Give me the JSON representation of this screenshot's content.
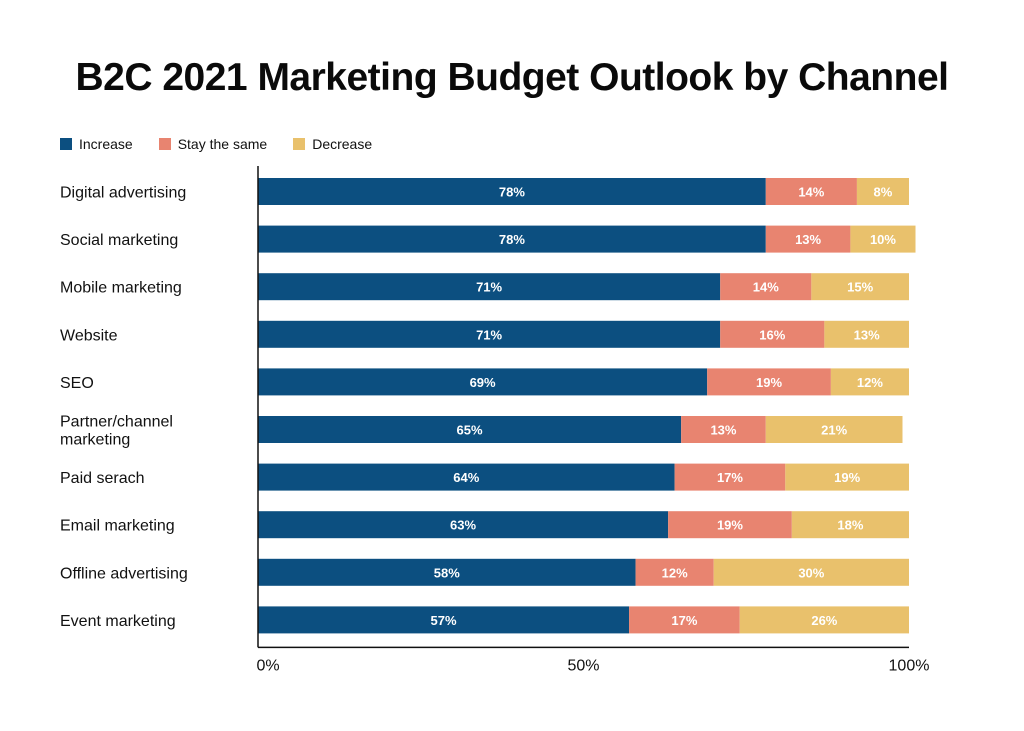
{
  "colors": {
    "increase": "#0c4f80",
    "stay": "#e88470",
    "decrease": "#e9c16c",
    "axis": "#111111"
  },
  "chart_data": {
    "type": "bar",
    "orientation": "horizontal",
    "stacked": true,
    "title": "B2C 2021 Marketing Budget Outlook by Channel",
    "categories": [
      "Digital advertising",
      "Social marketing",
      "Mobile marketing",
      "Website",
      "SEO",
      "Partner/channel marketing",
      "Paid serach",
      "Email marketing",
      "Offline advertising",
      "Event marketing"
    ],
    "series": [
      {
        "name": "Increase",
        "color_key": "increase",
        "values": [
          78,
          78,
          71,
          71,
          69,
          65,
          64,
          63,
          58,
          57
        ]
      },
      {
        "name": "Stay the same",
        "color_key": "stay",
        "values": [
          14,
          13,
          14,
          16,
          19,
          13,
          17,
          19,
          12,
          17
        ]
      },
      {
        "name": "Decrease",
        "color_key": "decrease",
        "values": [
          8,
          10,
          15,
          13,
          12,
          21,
          19,
          18,
          30,
          26
        ]
      }
    ],
    "xlim": [
      0,
      100
    ],
    "xticks": [
      "0%",
      "50%",
      "100%"
    ],
    "value_suffix": "%",
    "legend_position": "top-left",
    "grid": false
  }
}
